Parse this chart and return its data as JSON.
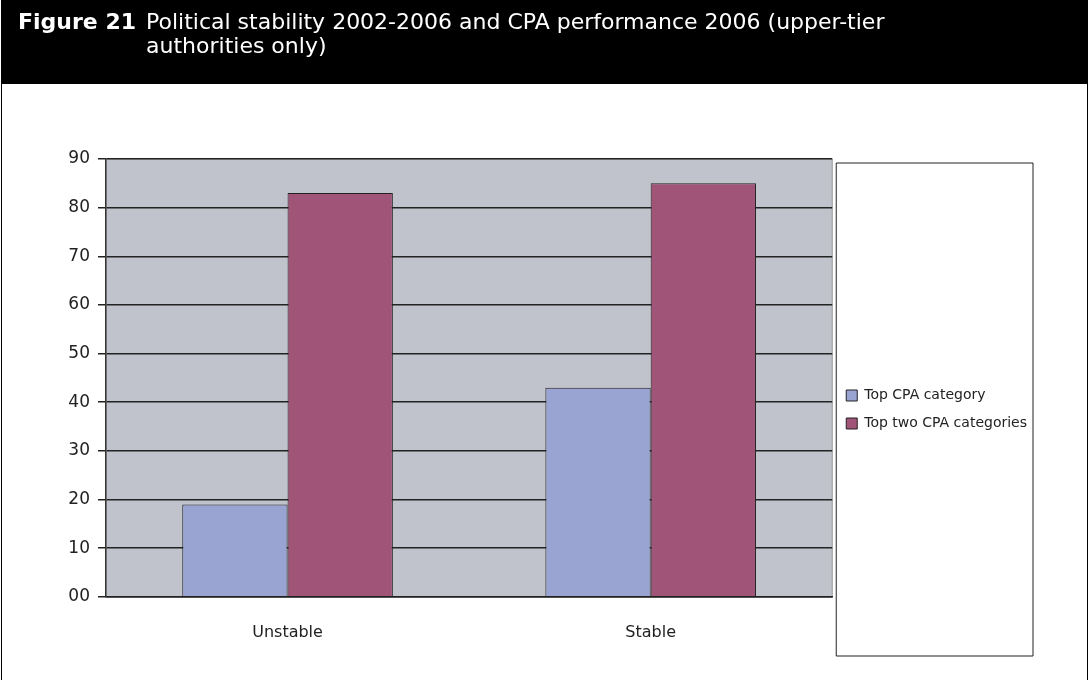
{
  "chart_data": {
    "type": "bar",
    "title": "Figure 21",
    "subtitle": "Political stability 2002-2006 and CPA performance 2006 (upper-tier authorities only)",
    "categories": [
      "Unstable",
      "Stable"
    ],
    "series": [
      {
        "name": "Top CPA category",
        "color": "#99a4d3",
        "values": [
          19,
          43
        ]
      },
      {
        "name": "Top two CPA categories",
        "color": "#a05578",
        "values": [
          83,
          85
        ]
      }
    ],
    "ylim": [
      0,
      90
    ],
    "yticks": [
      {
        "value": 0,
        "label": "00"
      },
      10,
      20,
      30,
      40,
      50,
      60,
      70,
      80,
      90
    ],
    "grid": "y",
    "legend": "right"
  }
}
